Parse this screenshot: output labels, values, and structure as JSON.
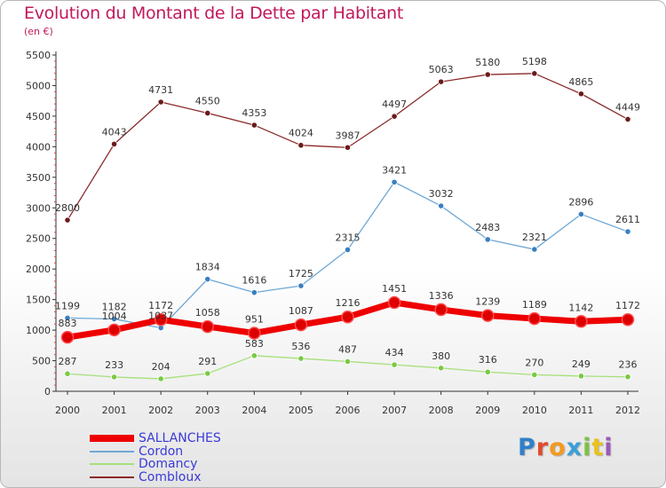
{
  "chart_data": {
    "type": "line",
    "title": "Evolution du Montant de la Dette par Habitant",
    "subtitle": "(en €)",
    "xlabel": "",
    "ylabel": "",
    "x": [
      "2000",
      "2001",
      "2002",
      "2003",
      "2004",
      "2005",
      "2006",
      "2007",
      "2008",
      "2009",
      "2010",
      "2011",
      "2012"
    ],
    "ylim": [
      0,
      5500
    ],
    "yticks": [
      "0",
      "500",
      "1000",
      "1500",
      "2000",
      "2500",
      "3000",
      "3500",
      "4000",
      "4500",
      "5000",
      "5500"
    ],
    "grid": false,
    "legend_position": "bottom-left",
    "series": [
      {
        "name": "SALLANCHES",
        "color": "#ee0000",
        "marker": "#dd0000",
        "values": [
          883,
          1004,
          1172,
          1058,
          951,
          1087,
          1216,
          1451,
          1336,
          1239,
          1189,
          1142,
          1172
        ],
        "labels": [
          "883",
          "1004",
          "1172",
          "1058",
          "951",
          "1087",
          "1216",
          "1451",
          "1336",
          "1239",
          "1189",
          "1142",
          "1172"
        ]
      },
      {
        "name": "Cordon",
        "color": "#6ea8d6",
        "marker": "#3a7fc1",
        "values": [
          1199,
          1182,
          1037,
          1834,
          1616,
          1725,
          2315,
          3421,
          3032,
          2483,
          2321,
          2896,
          2611
        ],
        "labels": [
          "1199",
          "1182",
          "1037",
          "1834",
          "1616",
          "1725",
          "2315",
          "3421",
          "3032",
          "2483",
          "2321",
          "2896",
          "2611"
        ]
      },
      {
        "name": "Domancy",
        "color": "#a6e07a",
        "marker": "#7ac943",
        "values": [
          287,
          233,
          204,
          291,
          583,
          536,
          487,
          434,
          380,
          316,
          270,
          249,
          236
        ],
        "labels": [
          "287",
          "233",
          "204",
          "291",
          "583",
          "536",
          "487",
          "434",
          "380",
          "316",
          "270",
          "249",
          "236"
        ]
      },
      {
        "name": "Combloux",
        "color": "#8b2a2a",
        "marker": "#6b1a1a",
        "values": [
          2800,
          4043,
          4731,
          4550,
          4353,
          4024,
          3987,
          4497,
          5063,
          5180,
          5198,
          4865,
          4449
        ],
        "labels": [
          "2800",
          "4043",
          "4731",
          "4550",
          "4353",
          "4024",
          "3987",
          "4497",
          "5063",
          "5180",
          "5198",
          "4865",
          "4449"
        ]
      }
    ]
  },
  "branding": {
    "logo_letters": [
      {
        "ch": "P",
        "color": "#2f80c8"
      },
      {
        "ch": "r",
        "color": "#e04b2b"
      },
      {
        "ch": "o",
        "color": "#f39a1e"
      },
      {
        "ch": "x",
        "color": "#3aa0d8"
      },
      {
        "ch": "i",
        "color": "#7cc242"
      },
      {
        "ch": "t",
        "color": "#e8c21f"
      },
      {
        "ch": "i",
        "color": "#9b59b6"
      }
    ]
  }
}
